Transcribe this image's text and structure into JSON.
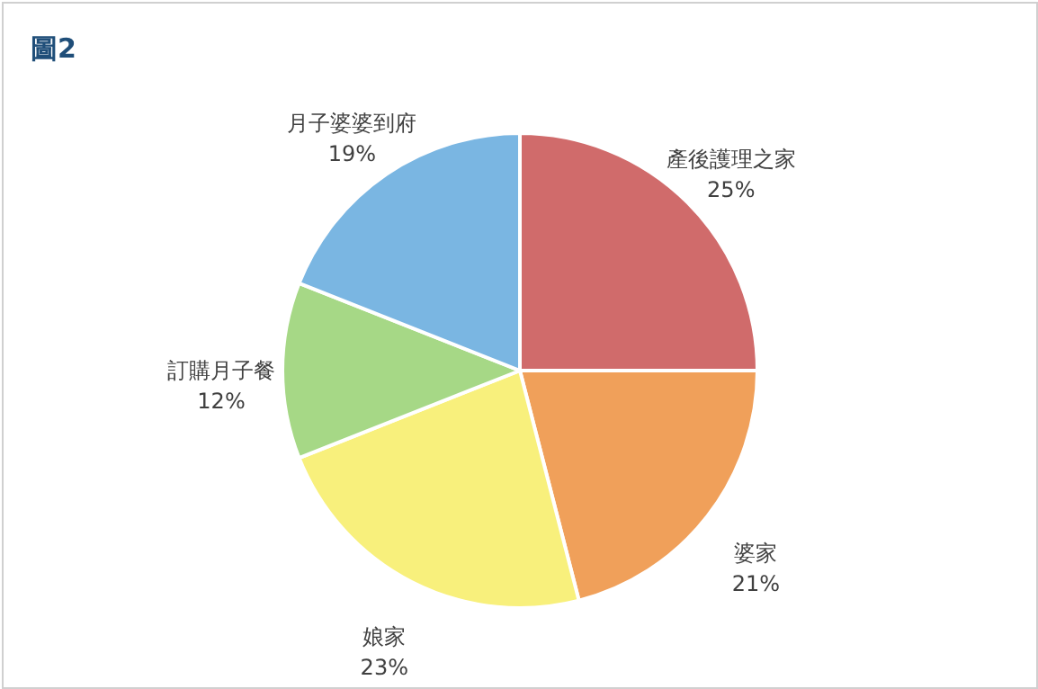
{
  "chart_data": {
    "type": "pie",
    "title": "圖2",
    "categories": [
      "產後護理之家",
      "婆家",
      "娘家",
      "訂購月子餐",
      "月子婆婆到府"
    ],
    "values": [
      25,
      21,
      23,
      12,
      19
    ],
    "colors": [
      "#d06b6b",
      "#f0a05a",
      "#f8f07c",
      "#a6d886",
      "#7ab6e2"
    ],
    "value_labels": [
      "25%",
      "21%",
      "23%",
      "12%",
      "19%"
    ]
  }
}
